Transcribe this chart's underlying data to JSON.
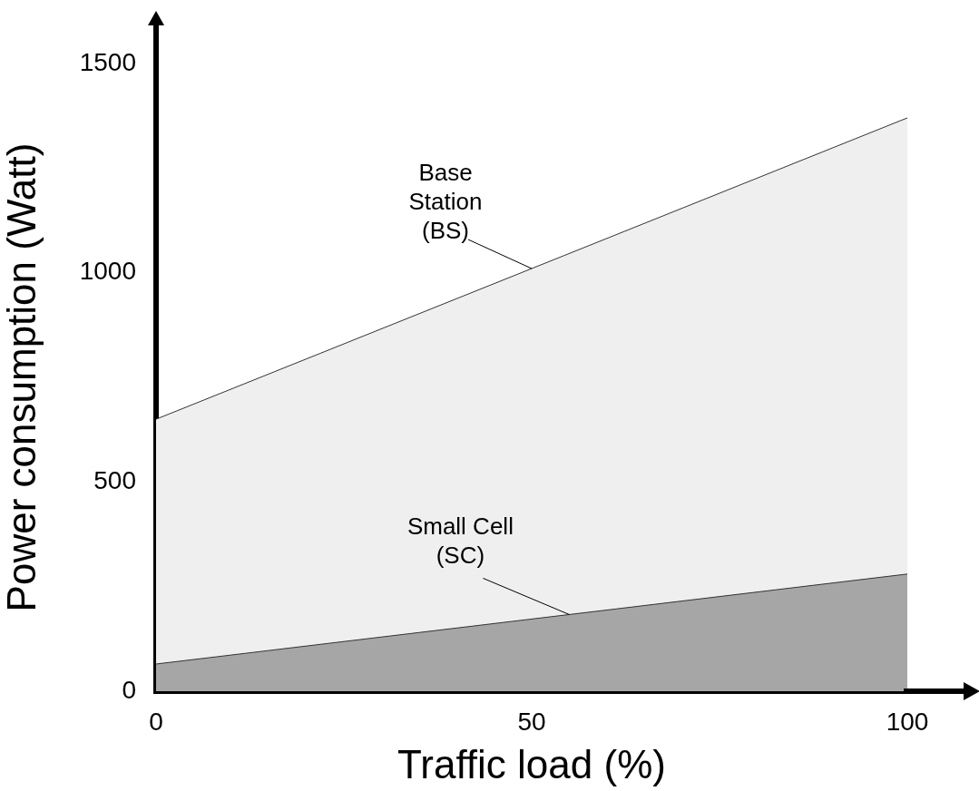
{
  "chart_data": {
    "type": "area",
    "xlabel": "Traffic load (%)",
    "ylabel": "Power consumption (Watt)",
    "x": [
      0,
      100
    ],
    "series": [
      {
        "name": "Base Station (BS)",
        "color": "#efefef",
        "values": [
          650,
          1370
        ]
      },
      {
        "name": "Small Cell (SC)",
        "color": "#a6a6a6",
        "values": [
          65,
          280
        ]
      }
    ],
    "xlim": [
      0,
      100
    ],
    "xticks": [
      0,
      50,
      100
    ],
    "ylim": [
      0,
      1500
    ],
    "yticks": [
      0,
      500,
      1000,
      1500
    ],
    "grid": false,
    "legend": false
  }
}
